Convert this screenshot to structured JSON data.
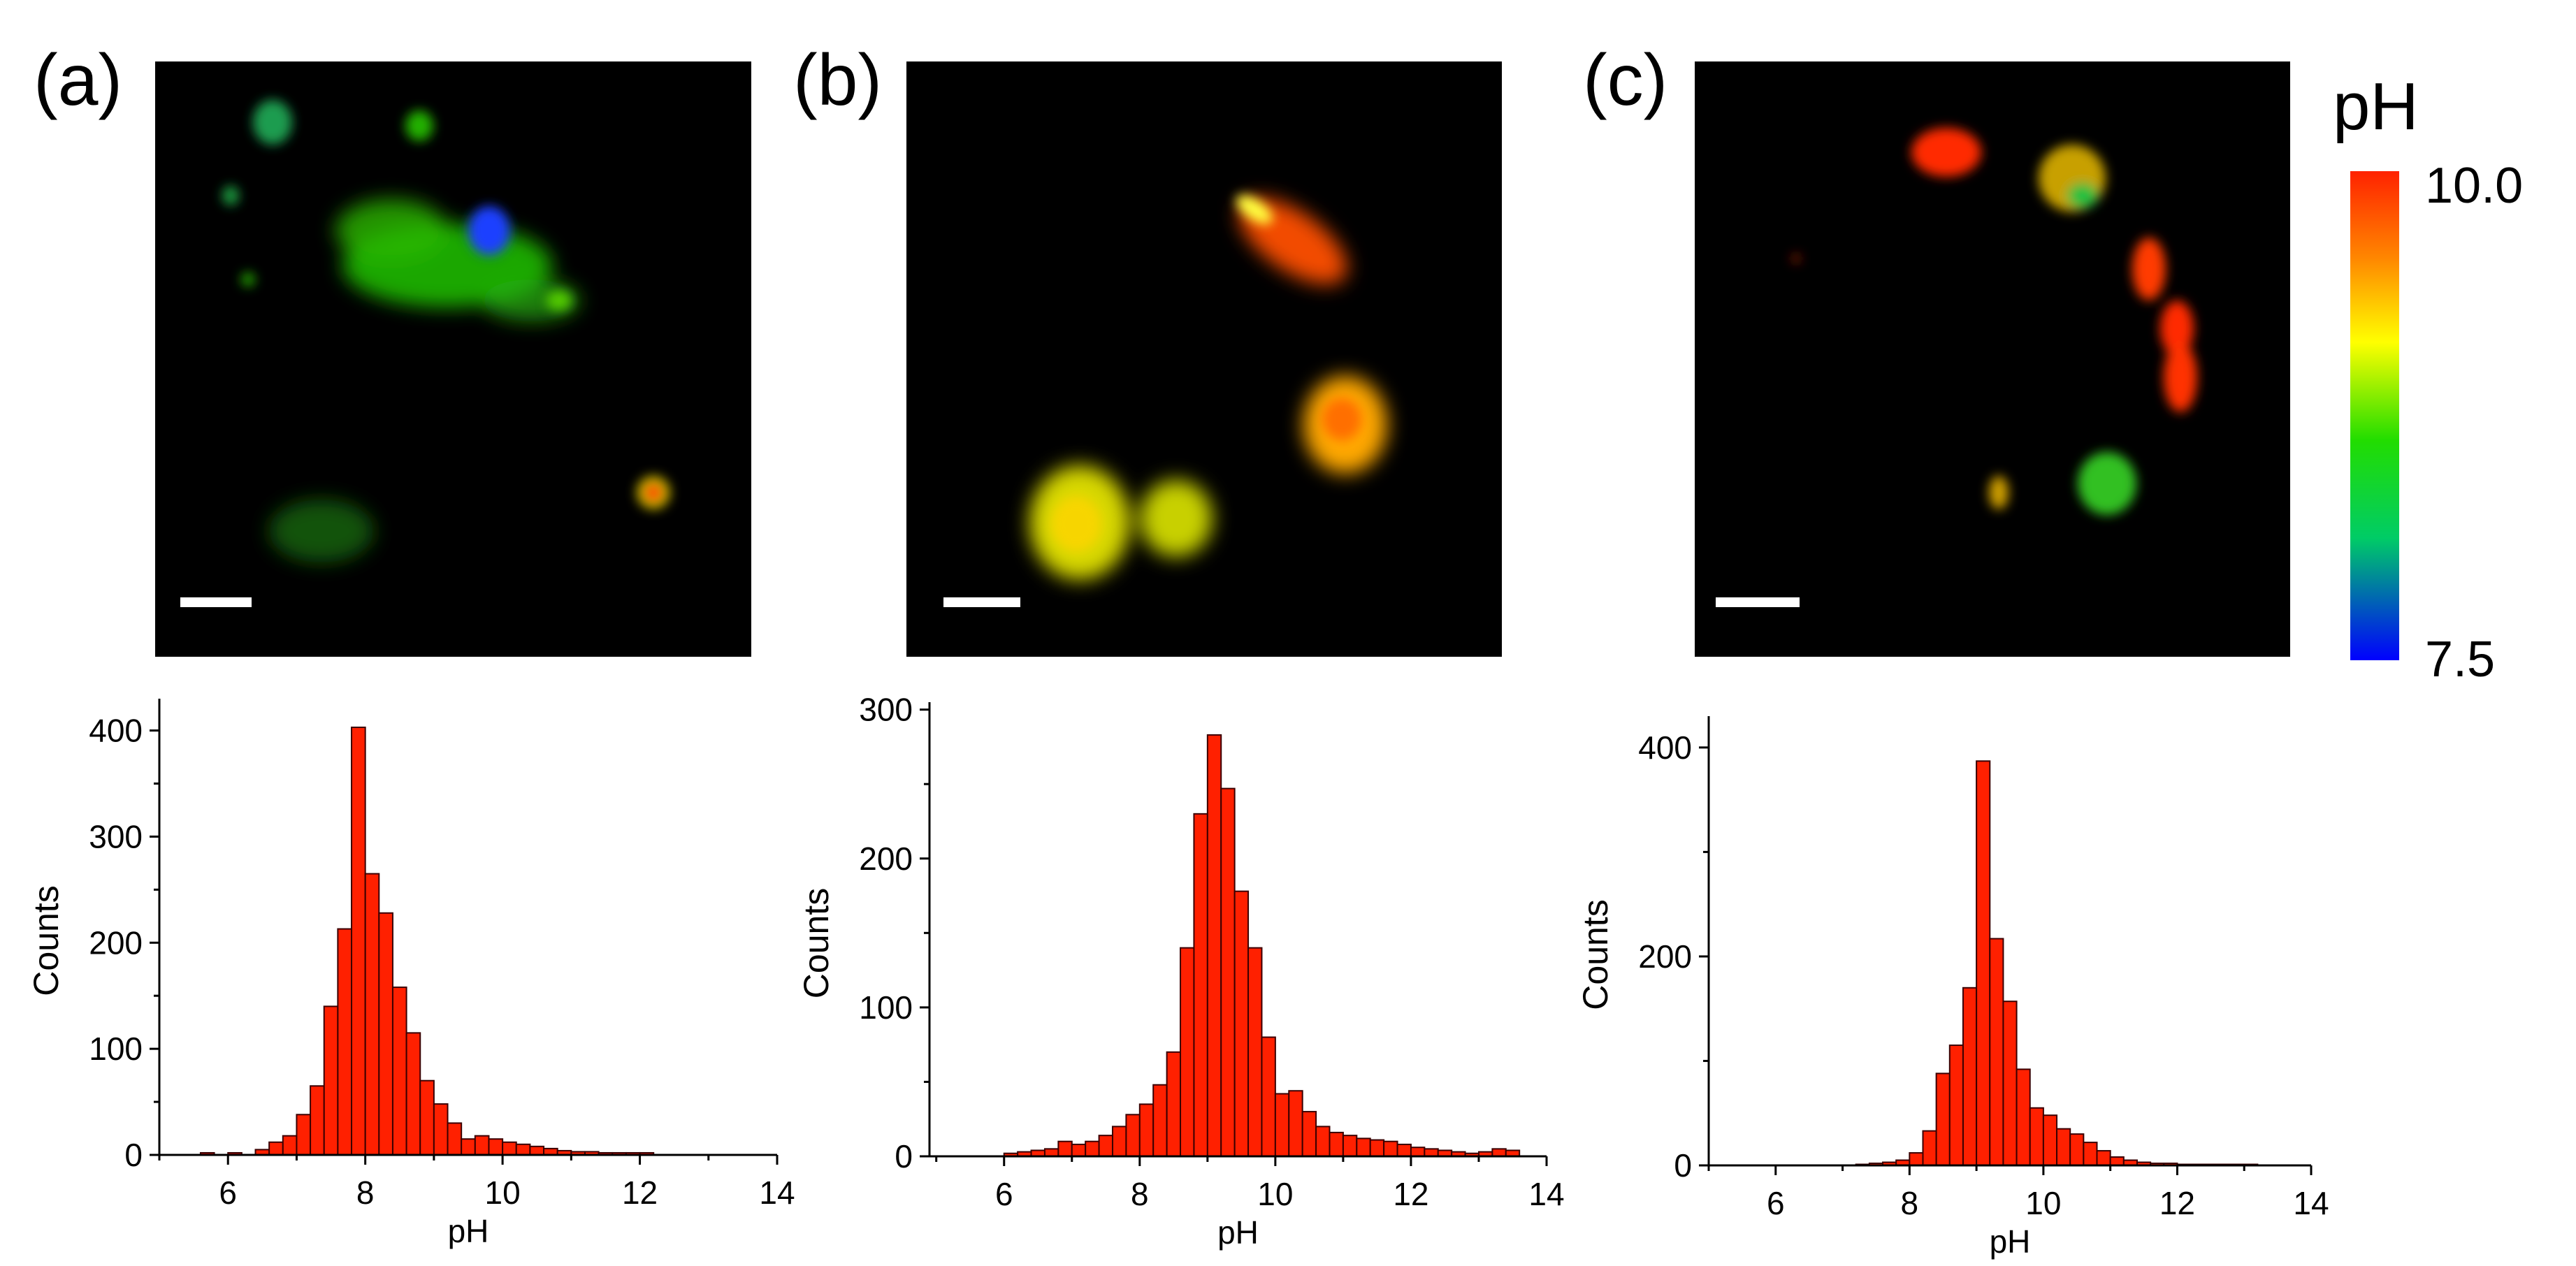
{
  "panels": [
    {
      "label": "(a)"
    },
    {
      "label": "(b)"
    },
    {
      "label": "(c)"
    }
  ],
  "colorbar": {
    "title": "pH",
    "max_label": "10.0",
    "min_label": "7.5",
    "stops": [
      "#0000ff",
      "#00cc66",
      "#22dd00",
      "#ffff00",
      "#ff8800",
      "#ff2200"
    ]
  },
  "colors": {
    "bar_fill": "#ff2000",
    "bar_stroke": "#3a0000",
    "image_background": "#000000",
    "scale_bar": "#ffffff"
  },
  "chart_data": [
    {
      "type": "bar",
      "title": "",
      "xlabel": "pH",
      "ylabel": "Counts",
      "xlim": [
        5,
        14
      ],
      "ylim": [
        0,
        430
      ],
      "xticks": [
        6,
        8,
        10,
        12,
        14
      ],
      "yticks": [
        0,
        100,
        200,
        300,
        400
      ],
      "bin_width": 0.2,
      "x": [
        5.7,
        6.1,
        6.5,
        6.7,
        6.9,
        7.1,
        7.3,
        7.5,
        7.7,
        7.9,
        8.1,
        8.3,
        8.5,
        8.7,
        8.9,
        9.1,
        9.3,
        9.5,
        9.7,
        9.9,
        10.1,
        10.3,
        10.5,
        10.7,
        10.9,
        11.1,
        11.3,
        11.5,
        11.7,
        11.9,
        12.1
      ],
      "values": [
        2,
        2,
        5,
        12,
        18,
        38,
        65,
        140,
        213,
        403,
        265,
        228,
        158,
        115,
        70,
        48,
        30,
        15,
        18,
        15,
        12,
        10,
        8,
        6,
        4,
        3,
        3,
        2,
        2,
        2,
        2
      ],
      "grid": false
    },
    {
      "type": "bar",
      "title": "",
      "xlabel": "pH",
      "ylabel": "Counts",
      "xlim": [
        4.9,
        14
      ],
      "ylim": [
        0,
        305
      ],
      "xticks": [
        6,
        8,
        10,
        12,
        14
      ],
      "yticks": [
        0,
        100,
        200,
        300
      ],
      "bin_width": 0.2,
      "x": [
        6.1,
        6.3,
        6.5,
        6.7,
        6.9,
        7.1,
        7.3,
        7.5,
        7.7,
        7.9,
        8.1,
        8.3,
        8.5,
        8.7,
        8.9,
        9.1,
        9.3,
        9.5,
        9.7,
        9.9,
        10.1,
        10.3,
        10.5,
        10.7,
        10.9,
        11.1,
        11.3,
        11.5,
        11.7,
        11.9,
        12.1,
        12.3,
        12.5,
        12.7,
        12.9,
        13.1,
        13.3,
        13.5
      ],
      "values": [
        2,
        3,
        4,
        5,
        10,
        8,
        10,
        14,
        20,
        28,
        35,
        48,
        70,
        140,
        230,
        283,
        247,
        178,
        140,
        80,
        42,
        44,
        30,
        20,
        16,
        14,
        12,
        11,
        10,
        8,
        6,
        5,
        4,
        3,
        2,
        3,
        5,
        4
      ],
      "grid": false
    },
    {
      "type": "bar",
      "title": "",
      "xlabel": "pH",
      "ylabel": "Counts",
      "xlim": [
        5,
        14
      ],
      "ylim": [
        0,
        430
      ],
      "xticks": [
        6,
        8,
        10,
        12,
        14
      ],
      "yticks": [
        0,
        200,
        400
      ],
      "bin_width": 0.2,
      "x": [
        7.3,
        7.5,
        7.7,
        7.9,
        8.1,
        8.3,
        8.5,
        8.7,
        8.9,
        9.1,
        9.3,
        9.5,
        9.7,
        9.9,
        10.1,
        10.3,
        10.5,
        10.7,
        10.9,
        11.1,
        11.3,
        11.5,
        11.7,
        11.9,
        12.1,
        12.3,
        12.5,
        12.7,
        12.9,
        13.1
      ],
      "values": [
        1,
        2,
        3,
        5,
        12,
        33,
        88,
        115,
        170,
        387,
        217,
        157,
        92,
        55,
        48,
        35,
        30,
        22,
        14,
        8,
        5,
        3,
        2,
        2,
        1,
        1,
        1,
        1,
        1,
        1
      ],
      "grid": false
    }
  ]
}
